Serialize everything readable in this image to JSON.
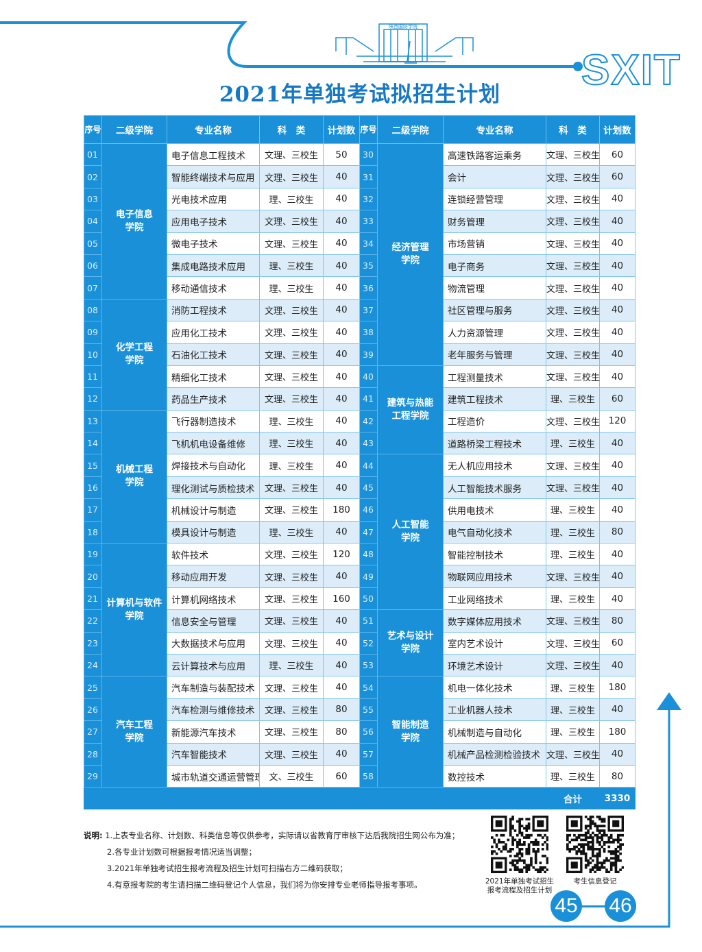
{
  "colors": {
    "accent": "#1a90d8",
    "row_alt": "#dcedf9",
    "title": "#1678c2"
  },
  "logo": {
    "brand": "SXIT",
    "building_sign": "陕西国防学院"
  },
  "title": "2021年单独考试拟招生计划",
  "table": {
    "headers": {
      "seq": "序号",
      "college": "二级学院",
      "major": "专业名称",
      "type": "科　类",
      "count": "计划数"
    },
    "left_colleges": [
      {
        "name": "电子信息学院",
        "line1": "电子信息",
        "line2": "学院",
        "rows": 7
      },
      {
        "name": "化学工程学院",
        "line1": "化学工程",
        "line2": "学院",
        "rows": 5
      },
      {
        "name": "机械工程学院",
        "line1": "机械工程",
        "line2": "学院",
        "rows": 6
      },
      {
        "name": "计算机与软件学院",
        "line1": "计算机与软件",
        "line2": "学院",
        "rows": 6
      },
      {
        "name": "汽车工程学院",
        "line1": "汽车工程",
        "line2": "学院",
        "rows": 5
      }
    ],
    "right_colleges": [
      {
        "name": "经济管理学院",
        "line1": "经济管理",
        "line2": "学院",
        "rows": 10
      },
      {
        "name": "建筑与热能工程学院",
        "line1": "建筑与热能",
        "line2": "工程学院",
        "rows": 4
      },
      {
        "name": "人工智能学院",
        "line1": "人工智能",
        "line2": "学院",
        "rows": 7
      },
      {
        "name": "艺术与设计学院",
        "line1": "艺术与设计",
        "line2": "学院",
        "rows": 3
      },
      {
        "name": "智能制造学院",
        "line1": "智能制造",
        "line2": "学院",
        "rows": 5
      }
    ],
    "left_rows": [
      {
        "seq": "01",
        "major": "电子信息工程技术",
        "type": "文理、三校生",
        "count": "50"
      },
      {
        "seq": "02",
        "major": "智能终端技术与应用",
        "type": "文理、三校生",
        "count": "40"
      },
      {
        "seq": "03",
        "major": "光电技术应用",
        "type": "理、三校生",
        "count": "40"
      },
      {
        "seq": "04",
        "major": "应用电子技术",
        "type": "文理、三校生",
        "count": "40"
      },
      {
        "seq": "05",
        "major": "微电子技术",
        "type": "文理、三校生",
        "count": "40"
      },
      {
        "seq": "06",
        "major": "集成电路技术应用",
        "type": "理、三校生",
        "count": "40"
      },
      {
        "seq": "07",
        "major": "移动通信技术",
        "type": "理、三校生",
        "count": "40"
      },
      {
        "seq": "08",
        "major": "消防工程技术",
        "type": "文理、三校生",
        "count": "40"
      },
      {
        "seq": "09",
        "major": "应用化工技术",
        "type": "文理、三校生",
        "count": "40"
      },
      {
        "seq": "10",
        "major": "石油化工技术",
        "type": "文理、三校生",
        "count": "40"
      },
      {
        "seq": "11",
        "major": "精细化工技术",
        "type": "文理、三校生",
        "count": "40"
      },
      {
        "seq": "12",
        "major": "药品生产技术",
        "type": "文理、三校生",
        "count": "40"
      },
      {
        "seq": "13",
        "major": "飞行器制造技术",
        "type": "理、三校生",
        "count": "40"
      },
      {
        "seq": "14",
        "major": "飞机机电设备维修",
        "type": "理、三校生",
        "count": "40"
      },
      {
        "seq": "15",
        "major": "焊接技术与自动化",
        "type": "理、三校生",
        "count": "40"
      },
      {
        "seq": "16",
        "major": "理化测试与质检技术",
        "type": "文理、三校生",
        "count": "40"
      },
      {
        "seq": "17",
        "major": "机械设计与制造",
        "type": "文理、三校生",
        "count": "180"
      },
      {
        "seq": "18",
        "major": "模具设计与制造",
        "type": "理、三校生",
        "count": "40"
      },
      {
        "seq": "19",
        "major": "软件技术",
        "type": "文理、三校生",
        "count": "120"
      },
      {
        "seq": "20",
        "major": "移动应用开发",
        "type": "文理、三校生",
        "count": "40"
      },
      {
        "seq": "21",
        "major": "计算机网络技术",
        "type": "文理、三校生",
        "count": "160"
      },
      {
        "seq": "22",
        "major": "信息安全与管理",
        "type": "文理、三校生",
        "count": "40"
      },
      {
        "seq": "23",
        "major": "大数据技术与应用",
        "type": "文理、三校生",
        "count": "40"
      },
      {
        "seq": "24",
        "major": "云计算技术与应用",
        "type": "理、三校生",
        "count": "40"
      },
      {
        "seq": "25",
        "major": "汽车制造与装配技术",
        "type": "文理、三校生",
        "count": "40"
      },
      {
        "seq": "26",
        "major": "汽车检测与维修技术",
        "type": "文理、三校生",
        "count": "80"
      },
      {
        "seq": "27",
        "major": "新能源汽车技术",
        "type": "文理、三校生",
        "count": "80"
      },
      {
        "seq": "28",
        "major": "汽车智能技术",
        "type": "文理、三校生",
        "count": "40"
      },
      {
        "seq": "29",
        "major": "城市轨道交通运营管理",
        "type": "文、三校生",
        "count": "60"
      }
    ],
    "right_rows": [
      {
        "seq": "30",
        "major": "高速铁路客运乘务",
        "type": "文理、三校生",
        "count": "60"
      },
      {
        "seq": "31",
        "major": "会计",
        "type": "文理、三校生",
        "count": "60"
      },
      {
        "seq": "32",
        "major": "连锁经营管理",
        "type": "文理、三校生",
        "count": "40"
      },
      {
        "seq": "33",
        "major": "财务管理",
        "type": "文理、三校生",
        "count": "40"
      },
      {
        "seq": "34",
        "major": "市场营销",
        "type": "文理、三校生",
        "count": "40"
      },
      {
        "seq": "35",
        "major": "电子商务",
        "type": "文理、三校生",
        "count": "40"
      },
      {
        "seq": "36",
        "major": "物流管理",
        "type": "文理、三校生",
        "count": "40"
      },
      {
        "seq": "37",
        "major": "社区管理与服务",
        "type": "文理、三校生",
        "count": "40"
      },
      {
        "seq": "38",
        "major": "人力资源管理",
        "type": "文理、三校生",
        "count": "40"
      },
      {
        "seq": "39",
        "major": "老年服务与管理",
        "type": "文理、三校生",
        "count": "40"
      },
      {
        "seq": "40",
        "major": "工程测量技术",
        "type": "文理、三校生",
        "count": "40"
      },
      {
        "seq": "41",
        "major": "建筑工程技术",
        "type": "理、三校生",
        "count": "60"
      },
      {
        "seq": "42",
        "major": "工程造价",
        "type": "文理、三校生",
        "count": "120"
      },
      {
        "seq": "43",
        "major": "道路桥梁工程技术",
        "type": "理、三校生",
        "count": "40"
      },
      {
        "seq": "44",
        "major": "无人机应用技术",
        "type": "文理、三校生",
        "count": "40"
      },
      {
        "seq": "45",
        "major": "人工智能技术服务",
        "type": "文理、三校生",
        "count": "40"
      },
      {
        "seq": "46",
        "major": "供用电技术",
        "type": "理、三校生",
        "count": "40"
      },
      {
        "seq": "47",
        "major": "电气自动化技术",
        "type": "理、三校生",
        "count": "80"
      },
      {
        "seq": "48",
        "major": "智能控制技术",
        "type": "理、三校生",
        "count": "40"
      },
      {
        "seq": "49",
        "major": "物联网应用技术",
        "type": "文理、三校生",
        "count": "40"
      },
      {
        "seq": "50",
        "major": "工业网络技术",
        "type": "理、三校生",
        "count": "40"
      },
      {
        "seq": "51",
        "major": "数字媒体应用技术",
        "type": "文理、三校生",
        "count": "80"
      },
      {
        "seq": "52",
        "major": "室内艺术设计",
        "type": "文理、三校生",
        "count": "60"
      },
      {
        "seq": "53",
        "major": "环境艺术设计",
        "type": "文理、三校生",
        "count": "40"
      },
      {
        "seq": "54",
        "major": "机电一体化技术",
        "type": "理、三校生",
        "count": "180"
      },
      {
        "seq": "55",
        "major": "工业机器人技术",
        "type": "理、三校生",
        "count": "40"
      },
      {
        "seq": "56",
        "major": "机械制造与自动化",
        "type": "理、三校生",
        "count": "180"
      },
      {
        "seq": "57",
        "major": "机械产品检测检验技术",
        "type": "文理、三校生",
        "count": "40"
      },
      {
        "seq": "58",
        "major": "数控技术",
        "type": "理、三校生",
        "count": "80"
      }
    ],
    "total_label": "合计",
    "total_value": "3330"
  },
  "notes": {
    "label": "说明:",
    "items": [
      "1.上表专业名称、计划数、科类信息等仅供参考，实际请以省教育厅审核下达后我院招生网公布为准；",
      "2.各专业计划数可根据报考情况适当调整；",
      "3.2021年单独考试招生报考流程及招生计划可扫描右方二维码获取；",
      "4.有意报考院的考生请扫描二维码登记个人信息，我们将为你安排专业老师指导报考事项。"
    ]
  },
  "qr_codes": [
    {
      "icon": "qr-code-icon",
      "caption_line1": "2021年单独考试招生",
      "caption_line2": "报考流程及招生计划"
    },
    {
      "icon": "qr-code-icon",
      "caption_line1": "考生信息登记",
      "caption_line2": ""
    }
  ],
  "pages": {
    "left": "45",
    "right": "46"
  }
}
